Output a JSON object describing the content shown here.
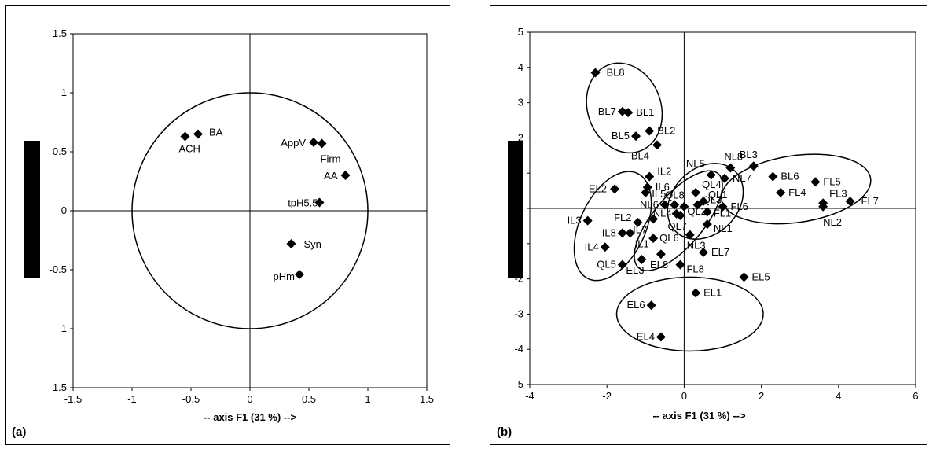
{
  "chart_data": [
    {
      "type": "scatter",
      "panel_label": "(a)",
      "xlabel": "-- axis F1 (31 %) -->",
      "ylabel": "",
      "xlim": [
        -1.5,
        1.5
      ],
      "ylim": [
        -1.5,
        1.5
      ],
      "xticks": [
        -1.5,
        -1,
        -0.5,
        0,
        0.5,
        1,
        1.5
      ],
      "yticks": [
        -1.5,
        -1,
        -0.5,
        0,
        0.5,
        1,
        1.5
      ],
      "xtick_labels": [
        "-1.5",
        "-1",
        "-0.5",
        "0",
        "0.5",
        "1",
        "1.5"
      ],
      "ytick_labels": [
        "-1.5",
        "-1",
        "-0.5",
        "0",
        "0.5",
        "1",
        "1.5"
      ],
      "unit_circle": true,
      "points": [
        {
          "label": "ACH",
          "x": -0.55,
          "y": 0.63
        },
        {
          "label": "BA",
          "x": -0.44,
          "y": 0.65
        },
        {
          "label": "AppV",
          "x": 0.54,
          "y": 0.58
        },
        {
          "label": "Firm",
          "x": 0.61,
          "y": 0.57
        },
        {
          "label": "AA",
          "x": 0.81,
          "y": 0.3
        },
        {
          "label": "tpH5.5",
          "x": 0.59,
          "y": 0.07
        },
        {
          "label": "Syn",
          "x": 0.35,
          "y": -0.28
        },
        {
          "label": "pHm",
          "x": 0.42,
          "y": -0.54
        }
      ]
    },
    {
      "type": "scatter",
      "panel_label": "(b)",
      "xlabel": "-- axis F1 (31 %) -->",
      "ylabel": "",
      "xlim": [
        -4,
        6
      ],
      "ylim": [
        -5,
        5
      ],
      "xticks": [
        -4,
        -2,
        0,
        2,
        4,
        6
      ],
      "yticks": [
        -5,
        -4,
        -3,
        -2,
        -1,
        0,
        1,
        2,
        3,
        4,
        5
      ],
      "xtick_labels": [
        "-4",
        "-2",
        "0",
        "2",
        "4",
        "6"
      ],
      "ytick_labels": [
        "-5",
        "-4",
        "-3",
        "-2",
        "-1",
        "0",
        "1",
        "2",
        "3",
        "4",
        "5"
      ],
      "groups_encircled": [
        "BL",
        "IL",
        "QL",
        "NL",
        "FL",
        "EL"
      ],
      "points": [
        {
          "label": "BL8",
          "x": -2.3,
          "y": 3.85
        },
        {
          "label": "BL7",
          "x": -1.6,
          "y": 2.75
        },
        {
          "label": "BL1",
          "x": -1.45,
          "y": 2.72
        },
        {
          "label": "BL2",
          "x": -0.9,
          "y": 2.2
        },
        {
          "label": "BL5",
          "x": -1.25,
          "y": 2.05
        },
        {
          "label": "BL4",
          "x": -0.7,
          "y": 1.8
        },
        {
          "label": "EL2",
          "x": -1.8,
          "y": 0.55
        },
        {
          "label": "IL2",
          "x": -0.9,
          "y": 0.9
        },
        {
          "label": "IL6",
          "x": -0.95,
          "y": 0.6
        },
        {
          "label": "IL5",
          "x": -1.0,
          "y": 0.45
        },
        {
          "label": "QL8",
          "x": -0.25,
          "y": 0.1
        },
        {
          "label": "NL6",
          "x": -0.5,
          "y": 0.1
        },
        {
          "label": "NL4",
          "x": -0.2,
          "y": -0.15
        },
        {
          "label": "IL3",
          "x": -2.5,
          "y": -0.35
        },
        {
          "label": "FL2",
          "x": -1.2,
          "y": -0.4
        },
        {
          "label": "IL8",
          "x": -1.6,
          "y": -0.7
        },
        {
          "label": "IL1",
          "x": -1.4,
          "y": -0.7
        },
        {
          "label": "IL4",
          "x": -2.05,
          "y": -1.1
        },
        {
          "label": "IL7",
          "x": -0.8,
          "y": -0.3
        },
        {
          "label": "QL7",
          "x": -0.1,
          "y": -0.2
        },
        {
          "label": "QL6",
          "x": -0.8,
          "y": -0.85
        },
        {
          "label": "QL5",
          "x": -1.6,
          "y": -1.6
        },
        {
          "label": "EL3",
          "x": -1.1,
          "y": -1.45
        },
        {
          "label": "EL8",
          "x": -0.6,
          "y": -1.3
        },
        {
          "label": "NL5",
          "x": 0.7,
          "y": 0.95
        },
        {
          "label": "QL4",
          "x": 0.3,
          "y": 0.45
        },
        {
          "label": "QL1",
          "x": 0.5,
          "y": 0.2
        },
        {
          "label": "QL3",
          "x": 0.35,
          "y": 0.1
        },
        {
          "label": "QL2",
          "x": 0.0,
          "y": 0.05
        },
        {
          "label": "FL1",
          "x": 0.6,
          "y": -0.1
        },
        {
          "label": "NL1",
          "x": 0.6,
          "y": -0.45
        },
        {
          "label": "NL3",
          "x": 0.15,
          "y": -0.75
        },
        {
          "label": "NL8",
          "x": 1.2,
          "y": 1.15
        },
        {
          "label": "NL7",
          "x": 1.05,
          "y": 0.85
        },
        {
          "label": "BL3",
          "x": 1.8,
          "y": 1.2
        },
        {
          "label": "FL6",
          "x": 1.0,
          "y": 0.05
        },
        {
          "label": "BL6",
          "x": 2.3,
          "y": 0.9
        },
        {
          "label": "FL4",
          "x": 2.5,
          "y": 0.45
        },
        {
          "label": "FL5",
          "x": 3.4,
          "y": 0.75
        },
        {
          "label": "FL3",
          "x": 3.6,
          "y": 0.15
        },
        {
          "label": "NL2",
          "x": 3.6,
          "y": 0.05
        },
        {
          "label": "FL7",
          "x": 4.3,
          "y": 0.2
        },
        {
          "label": "EL7",
          "x": 0.5,
          "y": -1.25
        },
        {
          "label": "FL8",
          "x": -0.1,
          "y": -1.6
        },
        {
          "label": "EL5",
          "x": 1.55,
          "y": -1.95
        },
        {
          "label": "EL1",
          "x": 0.3,
          "y": -2.4
        },
        {
          "label": "EL6",
          "x": -0.85,
          "y": -2.75
        },
        {
          "label": "EL4",
          "x": -0.6,
          "y": -3.65
        }
      ]
    }
  ]
}
